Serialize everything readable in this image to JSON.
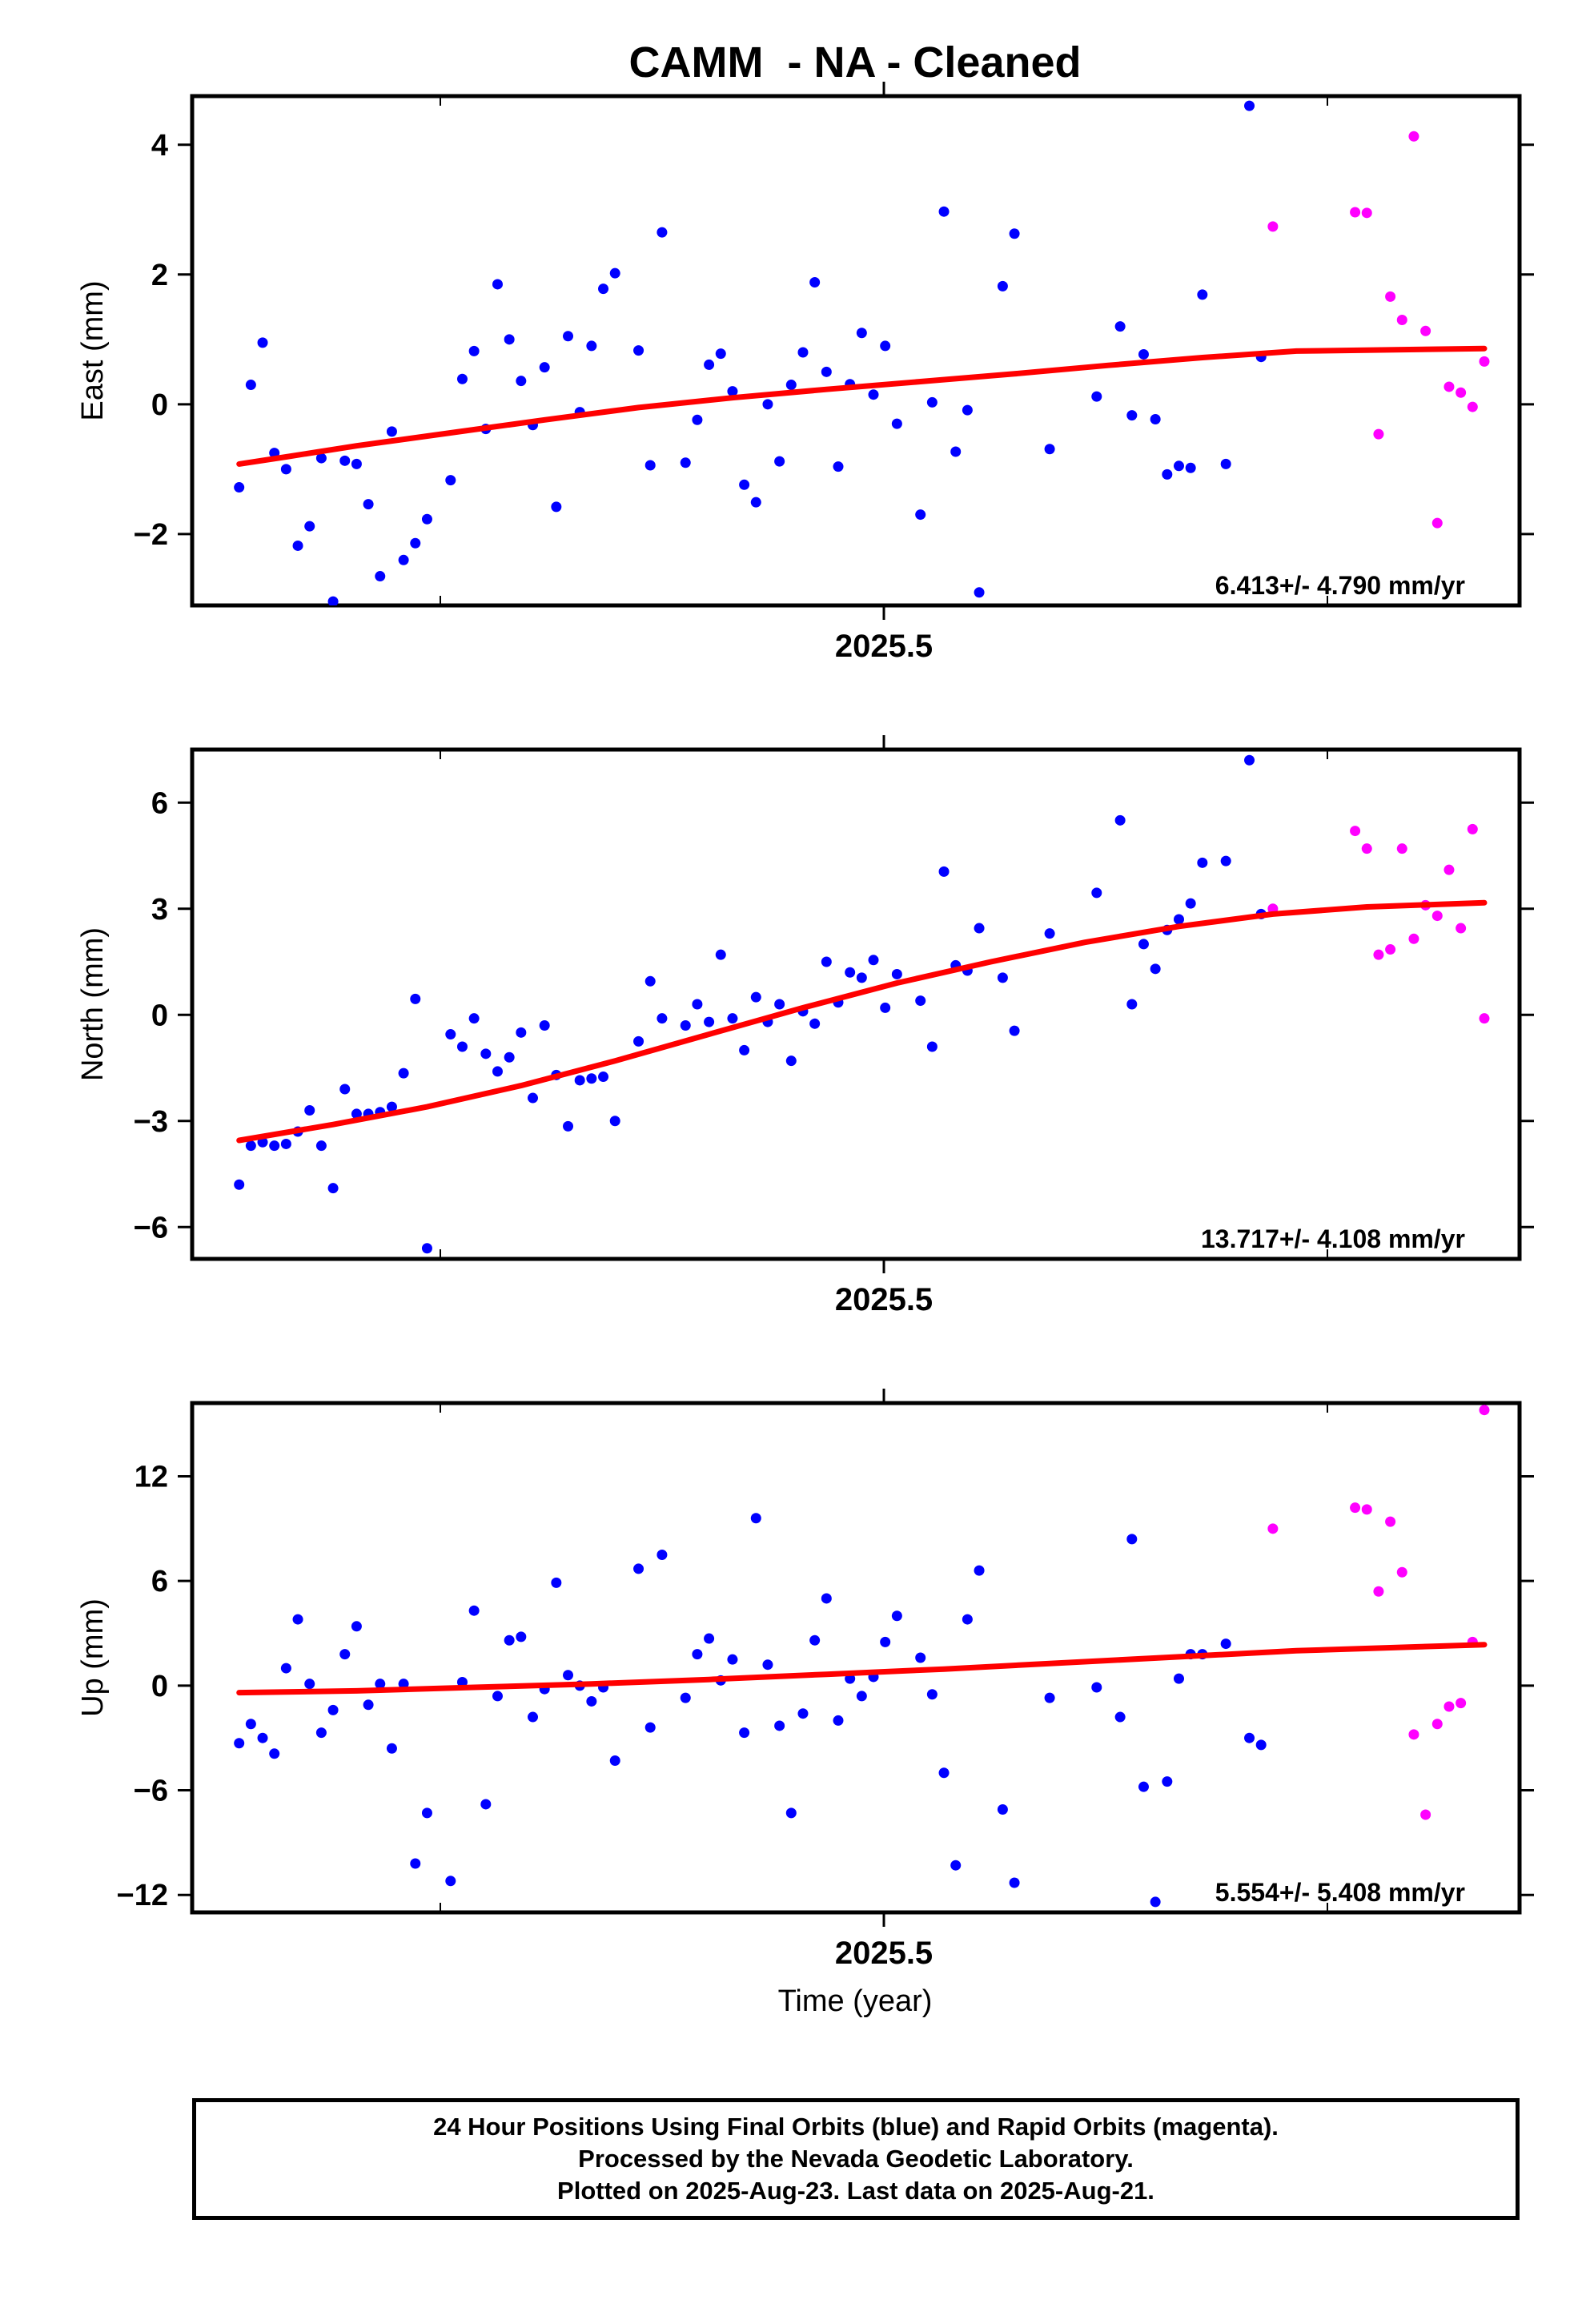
{
  "chart_data": {
    "type": "scatter",
    "title": "CAMM  - NA - Cleaned",
    "xlabel": "Time (year)",
    "x_tick_label": "2025.5",
    "colors": {
      "final": "#0000ff",
      "rapid": "#ff00ff",
      "trend": "#ff0000"
    },
    "panels": [
      {
        "id": "east",
        "ylabel": "East (mm)",
        "ylim": [
          -3.1,
          4.75
        ],
        "yticks": [
          -2,
          0,
          2,
          4
        ],
        "ytick_labels": [
          "−2",
          "0",
          "2",
          "4"
        ],
        "rate_label": "6.413+/- 4.790 mm/yr",
        "trend": [
          [
            0,
            -0.92
          ],
          [
            4,
            -0.81
          ],
          [
            10,
            -0.64
          ],
          [
            18,
            -0.44
          ],
          [
            26,
            -0.24
          ],
          [
            34,
            -0.05
          ],
          [
            42,
            0.1
          ],
          [
            50,
            0.23
          ],
          [
            58,
            0.35
          ],
          [
            66,
            0.47
          ],
          [
            74,
            0.6
          ],
          [
            82,
            0.72
          ],
          [
            90,
            0.82
          ],
          [
            106,
            0.86
          ]
        ],
        "final": [
          [
            0,
            -1.28
          ],
          [
            1,
            0.3
          ],
          [
            2,
            0.95
          ],
          [
            3,
            -0.75
          ],
          [
            4,
            -1.0
          ],
          [
            5,
            -2.18
          ],
          [
            6,
            -1.88
          ],
          [
            7,
            -0.83
          ],
          [
            8,
            -3.04
          ],
          [
            9,
            -0.87
          ],
          [
            10,
            -0.92
          ],
          [
            11,
            -1.54
          ],
          [
            12,
            -2.65
          ],
          [
            13,
            -0.42
          ],
          [
            14,
            -2.4
          ],
          [
            15,
            -2.14
          ],
          [
            16,
            -1.77
          ],
          [
            18,
            -1.17
          ],
          [
            19,
            0.39
          ],
          [
            20,
            0.82
          ],
          [
            21,
            -0.38
          ],
          [
            22,
            1.85
          ],
          [
            23,
            1.0
          ],
          [
            24,
            0.36
          ],
          [
            25,
            -0.32
          ],
          [
            26,
            0.57
          ],
          [
            27,
            -1.58
          ],
          [
            28,
            1.05
          ],
          [
            29,
            -0.12
          ],
          [
            30,
            0.9
          ],
          [
            31,
            1.78
          ],
          [
            32,
            2.02
          ],
          [
            34,
            0.83
          ],
          [
            35,
            -0.94
          ],
          [
            36,
            2.65
          ],
          [
            38,
            -0.9
          ],
          [
            39,
            -0.24
          ],
          [
            40,
            0.61
          ],
          [
            41,
            0.78
          ],
          [
            42,
            0.2
          ],
          [
            43,
            -1.24
          ],
          [
            44,
            -1.51
          ],
          [
            45,
            0.0
          ],
          [
            46,
            -0.88
          ],
          [
            47,
            0.3
          ],
          [
            48,
            0.8
          ],
          [
            49,
            1.88
          ],
          [
            50,
            0.5
          ],
          [
            51,
            -0.96
          ],
          [
            52,
            0.31
          ],
          [
            53,
            1.1
          ],
          [
            54,
            0.15
          ],
          [
            55,
            0.9
          ],
          [
            56,
            -0.3
          ],
          [
            58,
            -1.7
          ],
          [
            59,
            0.03
          ],
          [
            60,
            2.97
          ],
          [
            61,
            -0.73
          ],
          [
            62,
            -0.09
          ],
          [
            63,
            -2.9
          ],
          [
            65,
            1.82
          ],
          [
            66,
            2.63
          ],
          [
            69,
            -0.69
          ],
          [
            73,
            0.12
          ],
          [
            75,
            1.2
          ],
          [
            76,
            -0.17
          ],
          [
            77,
            0.77
          ],
          [
            78,
            -0.23
          ],
          [
            79,
            -1.08
          ],
          [
            80,
            -0.95
          ],
          [
            81,
            -0.98
          ],
          [
            82,
            1.69
          ],
          [
            84,
            -0.92
          ],
          [
            86,
            4.6
          ],
          [
            87,
            0.73
          ]
        ],
        "rapid": [
          [
            88,
            2.74
          ],
          [
            95,
            2.96
          ],
          [
            96,
            2.95
          ],
          [
            97,
            -0.46
          ],
          [
            98,
            1.66
          ],
          [
            99,
            1.3
          ],
          [
            100,
            4.13
          ],
          [
            101,
            1.13
          ],
          [
            102,
            -1.83
          ],
          [
            103,
            0.27
          ],
          [
            104,
            0.18
          ],
          [
            105,
            -0.04
          ],
          [
            106,
            0.66
          ]
        ]
      },
      {
        "id": "north",
        "ylabel": "North (mm)",
        "ylim": [
          -6.9,
          7.5
        ],
        "yticks": [
          -6,
          -3,
          0,
          3,
          6
        ],
        "ytick_labels": [
          "−6",
          "−3",
          "0",
          "3",
          "6"
        ],
        "rate_label": "13.717+/- 4.108 mm/yr",
        "trend": [
          [
            0,
            -3.55
          ],
          [
            8,
            -3.1
          ],
          [
            16,
            -2.6
          ],
          [
            24,
            -2.0
          ],
          [
            32,
            -1.3
          ],
          [
            40,
            -0.55
          ],
          [
            48,
            0.2
          ],
          [
            56,
            0.9
          ],
          [
            64,
            1.5
          ],
          [
            72,
            2.05
          ],
          [
            80,
            2.5
          ],
          [
            88,
            2.85
          ],
          [
            96,
            3.05
          ],
          [
            106,
            3.17
          ]
        ],
        "final": [
          [
            0,
            -4.8
          ],
          [
            1,
            -3.7
          ],
          [
            2,
            -3.6
          ],
          [
            3,
            -3.7
          ],
          [
            4,
            -3.65
          ],
          [
            5,
            -3.3
          ],
          [
            6,
            -2.7
          ],
          [
            7,
            -3.7
          ],
          [
            8,
            -4.9
          ],
          [
            9,
            -2.1
          ],
          [
            10,
            -2.8
          ],
          [
            11,
            -2.8
          ],
          [
            12,
            -2.75
          ],
          [
            13,
            -2.6
          ],
          [
            14,
            -1.65
          ],
          [
            15,
            0.45
          ],
          [
            16,
            -6.6
          ],
          [
            18,
            -0.55
          ],
          [
            19,
            -0.9
          ],
          [
            20,
            -0.1
          ],
          [
            21,
            -1.1
          ],
          [
            22,
            -1.6
          ],
          [
            23,
            -1.2
          ],
          [
            24,
            -0.5
          ],
          [
            25,
            -2.35
          ],
          [
            26,
            -0.3
          ],
          [
            27,
            -1.7
          ],
          [
            28,
            -3.15
          ],
          [
            29,
            -1.85
          ],
          [
            30,
            -1.8
          ],
          [
            31,
            -1.75
          ],
          [
            32,
            -3.0
          ],
          [
            34,
            -0.75
          ],
          [
            35,
            0.95
          ],
          [
            36,
            -0.1
          ],
          [
            38,
            -0.3
          ],
          [
            39,
            0.3
          ],
          [
            40,
            -0.2
          ],
          [
            41,
            1.7
          ],
          [
            42,
            -0.1
          ],
          [
            43,
            -1.0
          ],
          [
            44,
            0.5
          ],
          [
            45,
            -0.2
          ],
          [
            46,
            0.3
          ],
          [
            47,
            -1.3
          ],
          [
            48,
            0.1
          ],
          [
            49,
            -0.25
          ],
          [
            50,
            1.5
          ],
          [
            51,
            0.35
          ],
          [
            52,
            1.2
          ],
          [
            53,
            1.05
          ],
          [
            54,
            1.55
          ],
          [
            55,
            0.2
          ],
          [
            56,
            1.15
          ],
          [
            58,
            0.4
          ],
          [
            59,
            -0.9
          ],
          [
            60,
            4.05
          ],
          [
            61,
            1.4
          ],
          [
            62,
            1.25
          ],
          [
            63,
            2.45
          ],
          [
            65,
            1.05
          ],
          [
            66,
            -0.45
          ],
          [
            69,
            2.3
          ],
          [
            73,
            3.45
          ],
          [
            75,
            5.5
          ],
          [
            76,
            0.3
          ],
          [
            77,
            2.0
          ],
          [
            78,
            1.3
          ],
          [
            79,
            2.4
          ],
          [
            80,
            2.7
          ],
          [
            81,
            3.15
          ],
          [
            82,
            4.3
          ],
          [
            84,
            4.35
          ],
          [
            86,
            7.2
          ],
          [
            87,
            2.85
          ]
        ],
        "rapid": [
          [
            88,
            3.0
          ],
          [
            95,
            5.2
          ],
          [
            96,
            4.7
          ],
          [
            97,
            1.7
          ],
          [
            98,
            1.85
          ],
          [
            99,
            4.7
          ],
          [
            100,
            2.15
          ],
          [
            101,
            3.1
          ],
          [
            102,
            2.8
          ],
          [
            103,
            4.1
          ],
          [
            104,
            2.45
          ],
          [
            105,
            5.25
          ],
          [
            106,
            -0.1
          ]
        ]
      },
      {
        "id": "up",
        "ylabel": "Up (mm)",
        "ylim": [
          -13.0,
          16.2
        ],
        "yticks": [
          -12,
          -6,
          0,
          6,
          12
        ],
        "ytick_labels": [
          "−12",
          "−6",
          "0",
          "6",
          "12"
        ],
        "rate_label": "5.554+/- 5.408 mm/yr",
        "trend": [
          [
            0,
            -0.4
          ],
          [
            10,
            -0.3
          ],
          [
            20,
            -0.1
          ],
          [
            30,
            0.1
          ],
          [
            40,
            0.35
          ],
          [
            50,
            0.65
          ],
          [
            60,
            0.95
          ],
          [
            70,
            1.3
          ],
          [
            80,
            1.65
          ],
          [
            90,
            2.0
          ],
          [
            106,
            2.35
          ]
        ],
        "final": [
          [
            0,
            -3.3
          ],
          [
            1,
            -2.2
          ],
          [
            2,
            -3.0
          ],
          [
            3,
            -3.9
          ],
          [
            4,
            1.0
          ],
          [
            5,
            3.8
          ],
          [
            6,
            0.1
          ],
          [
            7,
            -2.7
          ],
          [
            8,
            -1.4
          ],
          [
            9,
            1.8
          ],
          [
            10,
            3.4
          ],
          [
            11,
            -1.1
          ],
          [
            12,
            0.1
          ],
          [
            13,
            -3.6
          ],
          [
            14,
            0.1
          ],
          [
            15,
            -10.2
          ],
          [
            16,
            -7.3
          ],
          [
            18,
            -11.2
          ],
          [
            19,
            0.2
          ],
          [
            20,
            4.3
          ],
          [
            21,
            -6.8
          ],
          [
            22,
            -0.6
          ],
          [
            23,
            2.6
          ],
          [
            24,
            2.8
          ],
          [
            25,
            -1.8
          ],
          [
            26,
            -0.2
          ],
          [
            27,
            5.9
          ],
          [
            28,
            0.6
          ],
          [
            29,
            0.0
          ],
          [
            30,
            -0.9
          ],
          [
            31,
            -0.1
          ],
          [
            32,
            -4.3
          ],
          [
            34,
            6.7
          ],
          [
            35,
            -2.4
          ],
          [
            36,
            7.5
          ],
          [
            38,
            -0.7
          ],
          [
            39,
            1.8
          ],
          [
            40,
            2.7
          ],
          [
            41,
            0.3
          ],
          [
            42,
            1.5
          ],
          [
            43,
            -2.7
          ],
          [
            44,
            9.6
          ],
          [
            45,
            1.2
          ],
          [
            46,
            -2.3
          ],
          [
            47,
            -7.3
          ],
          [
            48,
            -1.6
          ],
          [
            49,
            2.6
          ],
          [
            50,
            5.0
          ],
          [
            51,
            -2.0
          ],
          [
            52,
            0.4
          ],
          [
            53,
            -0.6
          ],
          [
            54,
            0.5
          ],
          [
            55,
            2.5
          ],
          [
            56,
            4.0
          ],
          [
            58,
            1.6
          ],
          [
            59,
            -0.5
          ],
          [
            60,
            -5.0
          ],
          [
            61,
            -10.3
          ],
          [
            62,
            3.8
          ],
          [
            63,
            6.6
          ],
          [
            65,
            -7.1
          ],
          [
            66,
            -11.3
          ],
          [
            69,
            -0.7
          ],
          [
            73,
            -0.1
          ],
          [
            75,
            -1.8
          ],
          [
            76,
            8.4
          ],
          [
            77,
            -5.8
          ],
          [
            78,
            -12.4
          ],
          [
            79,
            -5.5
          ],
          [
            80,
            0.4
          ],
          [
            81,
            1.8
          ],
          [
            82,
            1.8
          ],
          [
            84,
            2.4
          ],
          [
            86,
            -3.0
          ],
          [
            87,
            -3.4
          ]
        ],
        "rapid": [
          [
            88,
            9.0
          ],
          [
            95,
            10.2
          ],
          [
            96,
            10.1
          ],
          [
            97,
            5.4
          ],
          [
            98,
            9.4
          ],
          [
            99,
            6.5
          ],
          [
            100,
            -2.8
          ],
          [
            101,
            -7.4
          ],
          [
            102,
            -2.2
          ],
          [
            103,
            -1.2
          ],
          [
            104,
            -1.0
          ],
          [
            105,
            2.5
          ],
          [
            106,
            15.8
          ]
        ]
      }
    ]
  },
  "footer": {
    "line1": "24 Hour Positions Using Final Orbits (blue) and Rapid Orbits (magenta).",
    "line2": "Processed by the Nevada Geodetic Laboratory.",
    "line3": "Plotted on 2025-Aug-23. Last data on 2025-Aug-21."
  }
}
